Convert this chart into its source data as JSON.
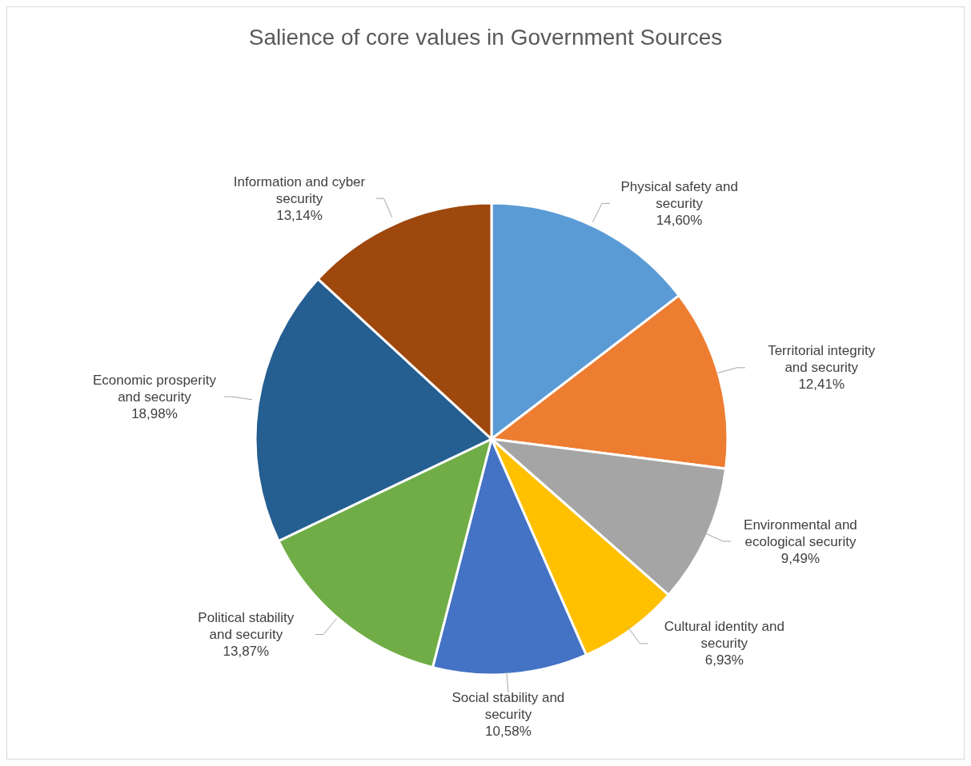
{
  "chart_data": {
    "type": "pie",
    "title": "Salience of core values in Government Sources",
    "categories": [
      "Physical safety and security",
      "Territorial integrity and security",
      "Environmental and ecological security",
      "Cultural identity and security",
      "Social stability and security",
      "Political stability and security",
      "Economic prosperity and security",
      "Information and cyber security"
    ],
    "values": [
      14.6,
      12.41,
      9.49,
      6.93,
      10.58,
      13.87,
      18.98,
      13.14
    ],
    "value_labels": [
      "14,60%",
      "12,41%",
      "9,49%",
      "6,93%",
      "10,58%",
      "13,87%",
      "18,98%",
      "13,14%"
    ],
    "colors": [
      "#5b9bd5",
      "#ed7d31",
      "#a5a5a5",
      "#ffc000",
      "#4472c4",
      "#70ad47",
      "#255e91",
      "#9e480e"
    ]
  }
}
